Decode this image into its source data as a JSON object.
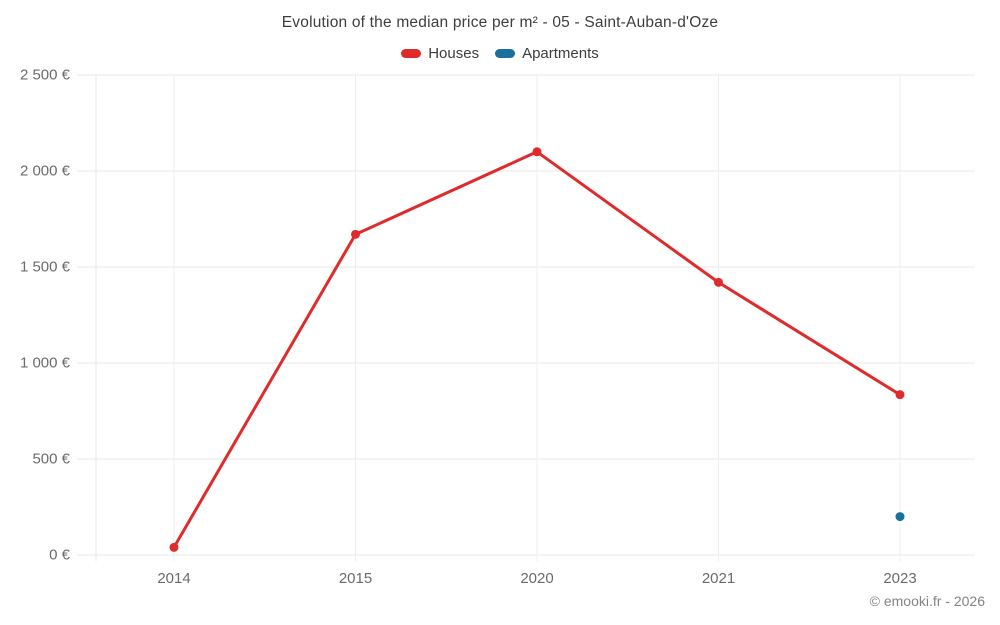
{
  "header": {
    "title": "Evolution of the median price per m² - 05 - Saint-Auban-d'Oze"
  },
  "legend": {
    "items": [
      {
        "label": "Houses",
        "color": "#df2b2b"
      },
      {
        "label": "Apartments",
        "color": "#1a6f9d"
      }
    ]
  },
  "footer": {
    "credit": "© emooki.fr - 2026"
  },
  "chart_data": {
    "type": "line",
    "title": "Evolution of the median price per m² - 05 - Saint-Auban-d'Oze",
    "xlabel": "",
    "ylabel": "",
    "currency": "€",
    "categories": [
      "2014",
      "2015",
      "2020",
      "2021",
      "2023"
    ],
    "series": [
      {
        "name": "Houses",
        "color": "#df2b2b",
        "values": [
          40,
          1670,
          2100,
          1420,
          835
        ]
      },
      {
        "name": "Apartments",
        "color": "#1a6f9d",
        "values": [
          null,
          null,
          null,
          null,
          200
        ]
      }
    ],
    "ylim": [
      0,
      2500
    ],
    "y_ticks": [
      "0 €",
      "500 €",
      "1 000 €",
      "1 500 €",
      "2 000 €",
      "2 500 €"
    ],
    "grid": true,
    "legend_position": "top"
  }
}
